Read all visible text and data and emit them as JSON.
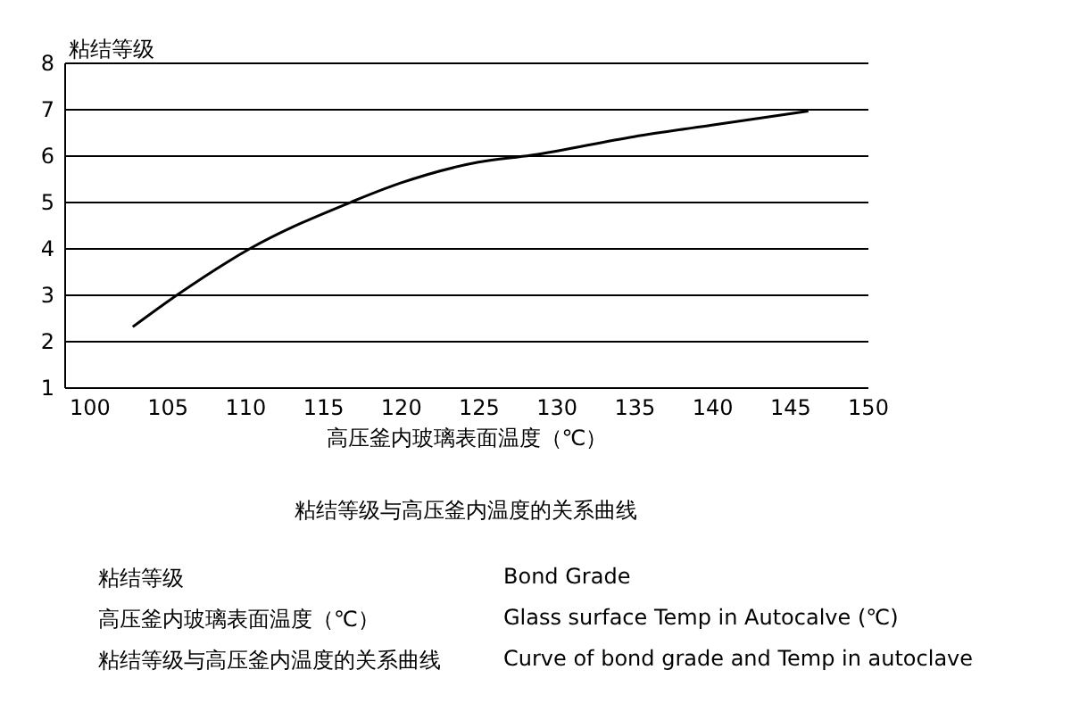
{
  "chart_data": {
    "type": "line",
    "title": "粘结等级与高压釜内温度的关系曲线",
    "xlabel": "高压釜内玻璃表面温度（℃）",
    "ylabel": "粘结等级",
    "x": [
      102.8,
      105.7,
      110.4,
      116.9,
      120,
      125,
      128.4,
      135,
      140,
      146.2
    ],
    "series": [
      {
        "color": "#000000",
        "values": [
          2.3,
          3,
          4,
          5,
          5.4,
          5.85,
          6,
          6.4,
          6.65,
          6.95
        ]
      }
    ],
    "xlim": [
      98.4,
      150
    ],
    "xticks": [
      100,
      105,
      110,
      115,
      120,
      125,
      130,
      135,
      140,
      145,
      150
    ],
    "ylim": [
      1,
      8
    ],
    "yticks": [
      1,
      2,
      3,
      4,
      5,
      6,
      7,
      8
    ],
    "grid": "y",
    "legend": false,
    "marker": "none",
    "line_style": "solid",
    "annotations": [
      "粘结等级",
      "Bond Grade",
      "高压釜内玻璃表面温度（℃）",
      "Glass surface Temp in Autocalve (℃)",
      "粘结等级与高压釜内温度的关系曲线",
      "Curve of bond grade and Temp in autoclave"
    ]
  }
}
